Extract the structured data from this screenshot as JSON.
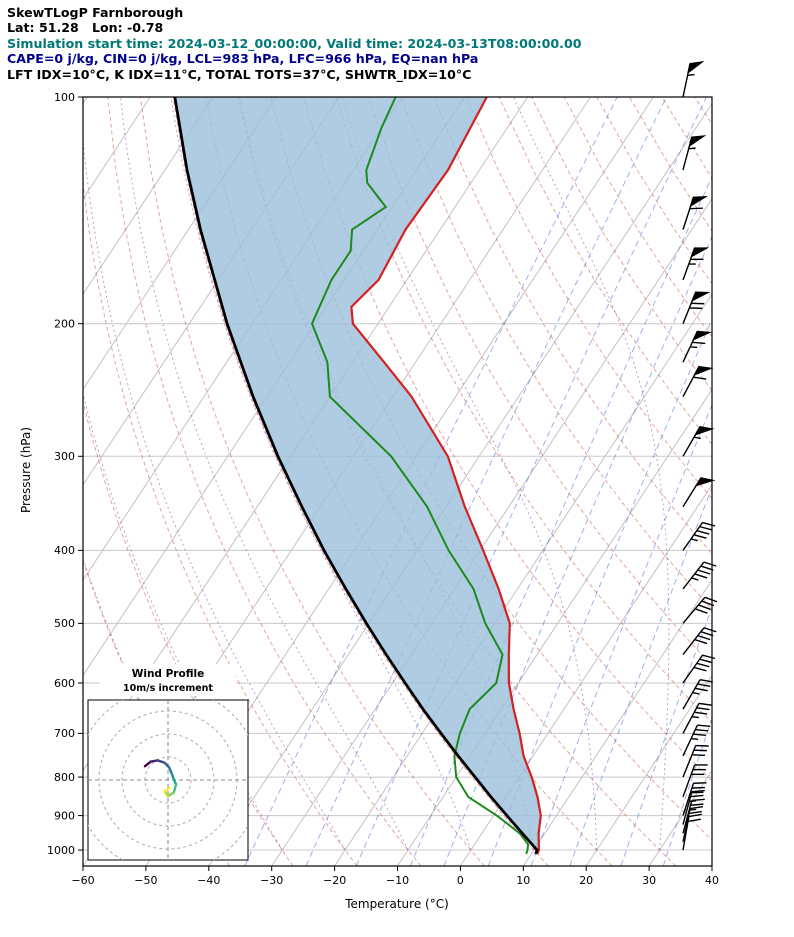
{
  "header": {
    "title": "SkewTLogP Farnborough",
    "location": "Lat: 51.28   Lon: -0.78",
    "sim_line": "Simulation start time: 2024-03-12_00:00:00, Valid time: 2024-03-13T08:00:00.00",
    "cape_line": "CAPE=0 j/kg, CIN=0 j/kg, LCL=983 hPa, LFC=966 hPa, EQ=nan hPa",
    "index_line": "LFT IDX=10°C, K IDX=11°C, TOTAL TOTS=37°C, SHWTR_IDX=10°C",
    "colors": {
      "title": "#000000",
      "location": "#000000",
      "sim_line": "#007878",
      "cape_line": "#00008b",
      "index_line": "#000000"
    }
  },
  "axes": {
    "xlabel": "Temperature (°C)",
    "ylabel": "Pressure (hPa)",
    "x_ticks": [
      -60,
      -50,
      -40,
      -30,
      -20,
      -10,
      0,
      10,
      20,
      30,
      40
    ],
    "y_ticks": [
      100,
      200,
      300,
      400,
      500,
      600,
      700,
      800,
      900,
      1000
    ],
    "xlim": [
      -60,
      40
    ],
    "plim": [
      100,
      1050
    ]
  },
  "chart_data": {
    "type": "line",
    "variant": "skew-t-log-p",
    "title": "SkewTLogP Farnborough",
    "station": "Farnborough",
    "lat": 51.28,
    "lon": -0.78,
    "indices": {
      "CAPE_jkg": 0,
      "CIN_jkg": 0,
      "LCL_hPa": 983,
      "LFC_hPa": 966,
      "EQ_hPa": "nan",
      "LFT_IDX_C": 10,
      "K_IDX_C": 11,
      "TOTAL_TOTS_C": 37,
      "SHWTR_IDX_C": 10
    },
    "skew_slope": 0.66,
    "colors": {
      "temperature": "#d42020",
      "dewpoint": "#1e8a1e",
      "parcel": "#000000",
      "shading": "#9bbfdc",
      "isobar": "#c8c8c8",
      "isotherm": "#c2c2c2",
      "dry_adiabat": "rgba(205,70,70,0.5)",
      "moist_adiabat": "rgba(145,75,165,0.55)",
      "mixing_ratio": "rgba(70,95,220,0.5)"
    },
    "series": [
      {
        "name": "temperature",
        "pressure": [
          1012,
          1000,
          950,
          900,
          850,
          800,
          750,
          700,
          650,
          600,
          550,
          500,
          450,
          400,
          350,
          300,
          250,
          225,
          200,
          190,
          175,
          150,
          125,
          100
        ],
        "values": [
          11.0,
          10.8,
          9.0,
          7.5,
          5.0,
          2.0,
          -1.5,
          -4.5,
          -8.0,
          -11.5,
          -14.5,
          -17.6,
          -23.0,
          -29.5,
          -37.0,
          -45.0,
          -57.0,
          -65.0,
          -74.0,
          -76.0,
          -74.5,
          -75.5,
          -75.0,
          -76.5
        ]
      },
      {
        "name": "dewpoint",
        "pressure": [
          1012,
          1000,
          983,
          950,
          900,
          850,
          800,
          750,
          700,
          650,
          600,
          550,
          500,
          450,
          400,
          350,
          300,
          250,
          225,
          200,
          175,
          160,
          150,
          140,
          130,
          125,
          110,
          100
        ],
        "values": [
          9.2,
          9.0,
          8.5,
          6.0,
          0.5,
          -6.0,
          -10.0,
          -12.5,
          -14.0,
          -15.0,
          -13.5,
          -15.5,
          -21.5,
          -27.0,
          -35.0,
          -43.0,
          -54.0,
          -70.0,
          -74.0,
          -80.5,
          -82.0,
          -82.0,
          -84.0,
          -81.0,
          -86.5,
          -88.0,
          -90.0,
          -91.0
        ]
      },
      {
        "name": "parcel",
        "pressure": [
          1012,
          1000,
          950,
          900,
          850,
          800,
          750,
          700,
          650,
          600,
          550,
          500,
          450,
          400,
          350,
          300,
          250,
          200,
          150,
          125,
          100
        ],
        "values": [
          10.7,
          10.5,
          6.4,
          2.1,
          -2.4,
          -7.0,
          -11.9,
          -17.0,
          -22.4,
          -28.0,
          -34.0,
          -40.4,
          -47.3,
          -54.8,
          -62.9,
          -72.0,
          -82.2,
          -94.0,
          -108.1,
          -116.5,
          -126.1
        ]
      }
    ],
    "wind_barbs": {
      "units": "m/s",
      "pressure": [
        1000,
        975,
        950,
        925,
        900,
        850,
        800,
        750,
        700,
        650,
        600,
        550,
        500,
        450,
        400,
        350,
        300,
        250,
        225,
        200,
        175,
        150,
        125,
        100
      ],
      "speed": [
        10,
        10,
        12.5,
        12.5,
        15,
        15,
        15,
        17.5,
        17.5,
        17.5,
        20,
        20,
        20,
        22.5,
        22.5,
        25,
        27.5,
        30,
        32.5,
        35,
        32.5,
        30,
        27.5,
        27.5
      ],
      "direction": [
        10,
        12,
        15,
        15,
        18,
        20,
        22,
        25,
        28,
        30,
        35,
        38,
        40,
        38,
        35,
        32,
        30,
        28,
        25,
        22,
        20,
        18,
        15,
        12
      ]
    },
    "hodograph": {
      "title": "Wind Profile",
      "subtitle": "10m/s increment",
      "ring_increment_ms": 10,
      "rings": [
        10,
        20,
        30,
        40
      ],
      "u": [
        -10,
        -7.5,
        -4.5,
        -1.5,
        0.5,
        1.5,
        2.5,
        3.5,
        2.5,
        0,
        -1.5,
        0.5
      ],
      "v": [
        6,
        8,
        8.5,
        7.5,
        5.5,
        3,
        0.5,
        -2,
        -5.5,
        -7,
        -5,
        -3.5
      ],
      "colors": [
        "#440154",
        "#46246e",
        "#414487",
        "#35608d",
        "#2a788e",
        "#21918c",
        "#22a884",
        "#43bf71",
        "#7ad151",
        "#bddf26",
        "#fde725"
      ]
    },
    "background": {
      "isotherm_min": -160,
      "isotherm_max": 40,
      "isotherm_step": 10,
      "dry_adiabats": [
        -40,
        -30,
        -20,
        -10,
        0,
        10,
        20,
        30,
        40,
        50,
        60,
        70,
        80,
        90,
        100,
        110,
        120,
        130,
        140,
        150,
        160,
        170,
        180
      ],
      "moist_adiabats_T0": [
        -40,
        -30,
        -20,
        -10,
        0,
        10,
        20,
        30
      ],
      "mixing_ratios_gkg": [
        0.2,
        0.5,
        1,
        2,
        3,
        5,
        8,
        12,
        20,
        30
      ]
    },
    "legend_position": "none",
    "grid": true
  }
}
